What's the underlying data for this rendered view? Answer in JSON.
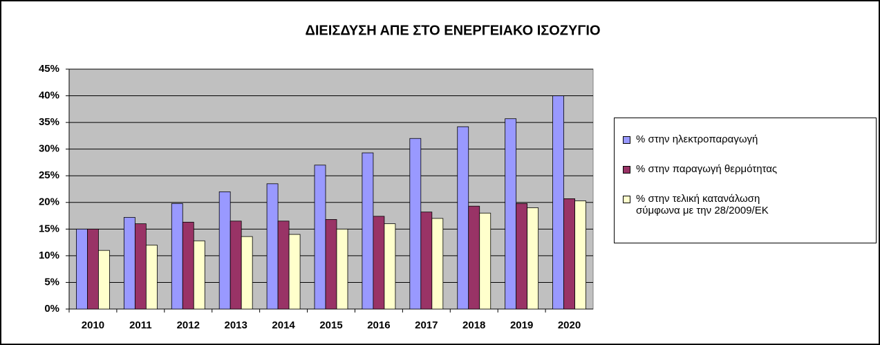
{
  "chart_data": {
    "type": "bar",
    "title": "ΔΙΕΙΣΔΥΣΗ ΑΠΕ ΣΤΟ ΕΝΕΡΓΕΙΑΚΟ ΙΣΟΖΥΓΙΟ",
    "categories": [
      "2010",
      "2011",
      "2012",
      "2013",
      "2014",
      "2015",
      "2016",
      "2017",
      "2018",
      "2019",
      "2020"
    ],
    "series": [
      {
        "name": "% στην ηλεκτροπαραγωγή",
        "color": "#9999ff",
        "values": [
          15,
          17.2,
          19.8,
          22,
          23.5,
          27,
          29.3,
          32,
          34.2,
          35.7,
          40
        ]
      },
      {
        "name": "% στην παραγωγή θερμότητας",
        "color": "#993366",
        "values": [
          15,
          16,
          16.3,
          16.5,
          16.5,
          16.8,
          17.4,
          18.2,
          19.3,
          19.8,
          20.7
        ]
      },
      {
        "name": "% στην τελική κατανάλωση σύμφωνα με την 28/2009/ΕΚ",
        "color": "#ffffcc",
        "values": [
          11,
          12,
          12.8,
          13.6,
          14,
          15,
          16,
          17,
          18,
          19,
          20.3
        ]
      }
    ],
    "ylim": [
      0,
      45
    ],
    "yticks": [
      {
        "value": 0,
        "label": "0%"
      },
      {
        "value": 5,
        "label": "5%"
      },
      {
        "value": 10,
        "label": "10%"
      },
      {
        "value": 15,
        "label": "15%"
      },
      {
        "value": 20,
        "label": "20%"
      },
      {
        "value": 25,
        "label": "25%"
      },
      {
        "value": 30,
        "label": "30%"
      },
      {
        "value": 35,
        "label": "35%"
      },
      {
        "value": 40,
        "label": "40%"
      },
      {
        "value": 45,
        "label": "45%"
      }
    ],
    "grid": true
  }
}
